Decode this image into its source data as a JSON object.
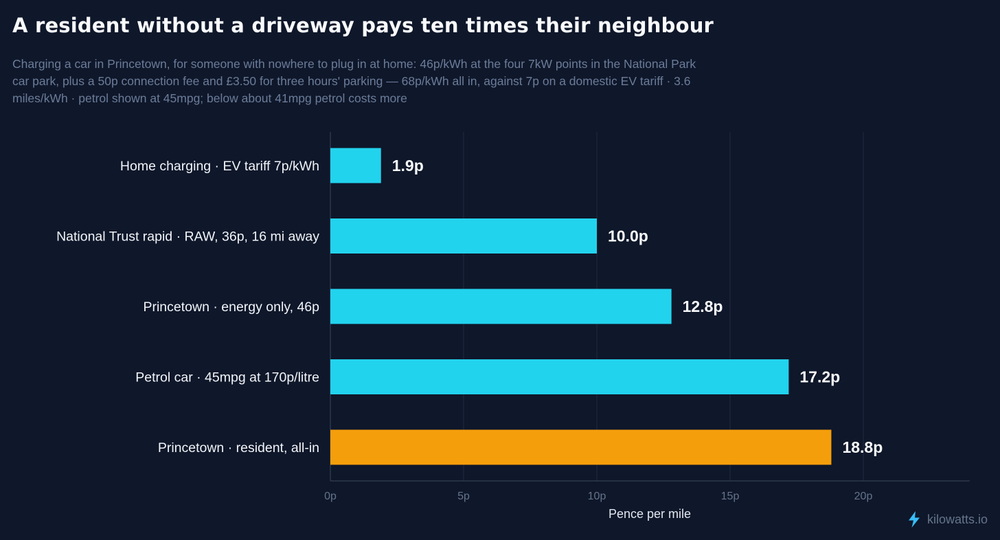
{
  "title": "A resident without a driveway pays ten times their neighbour",
  "subtitle": "Charging a car in Princetown, for someone with nowhere to plug in at home: 46p/kWh at the four 7kW points in the National Park car park, plus a 50p connection fee and £3.50 for three hours' parking — 68p/kWh all in, against 7p on a domestic EV tariff  ·  3.6 miles/kWh  ·  petrol shown at 45mpg; below about 41mpg petrol costs more",
  "brand": {
    "name": "kilowatts.io",
    "icon": "lightning-bolt-icon"
  },
  "colors": {
    "background": "#0f172a",
    "bar": "#22d3ee",
    "highlight": "#f59e0b",
    "text": "#f8fafc",
    "muted": "#6b7c99"
  },
  "chart_data": {
    "type": "bar",
    "orientation": "horizontal",
    "categories": [
      "Home charging  ·  EV tariff 7p/kWh",
      "National Trust rapid  ·  RAW, 36p, 16 mi away",
      "Princetown  ·  energy only, 46p",
      "Petrol car  ·  45mpg at 170p/litre",
      "Princetown  ·  resident, all-in"
    ],
    "values": [
      1.9,
      10.0,
      12.8,
      17.2,
      18.8
    ],
    "value_labels": [
      "1.9p",
      "10.0p",
      "12.8p",
      "17.2p",
      "18.8p"
    ],
    "highlighted_category": "Princetown  ·  resident, all-in",
    "xlabel": "Pence per mile",
    "ylabel": "",
    "xlim": [
      0,
      24
    ],
    "x_ticks": [
      0,
      5,
      10,
      15,
      20
    ],
    "x_tick_labels": [
      "0p",
      "5p",
      "10p",
      "15p",
      "20p"
    ],
    "grid": "vertical",
    "legend": "none"
  }
}
